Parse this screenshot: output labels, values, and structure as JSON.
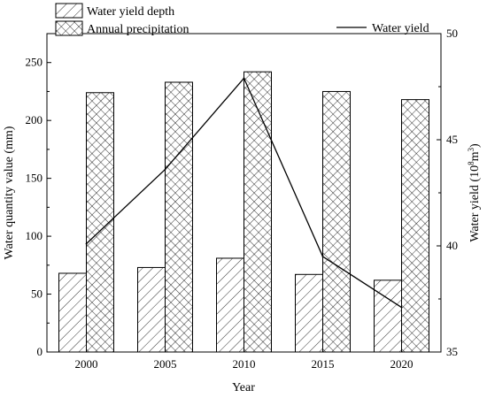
{
  "chart_data": {
    "type": "bar",
    "xlabel": "Year",
    "ylabel": "Water quantity value (mm)",
    "ylabel_right_prefix": "Water yield (10",
    "ylabel_right_exp1": "8",
    "ylabel_right_mid": "m",
    "ylabel_right_exp2": "3",
    "ylabel_right_suffix": ")",
    "categories": [
      "2000",
      "2005",
      "2010",
      "2015",
      "2020"
    ],
    "ylim": [
      0,
      275
    ],
    "yticks": [
      "0",
      "50",
      "100",
      "150",
      "200",
      "250"
    ],
    "y2lim": [
      35,
      50
    ],
    "y2ticks": [
      "35",
      "40",
      "45",
      "50"
    ],
    "series": [
      {
        "name": "Water yield depth",
        "kind": "bar",
        "pattern": "diagonal-hatch",
        "axis": "left",
        "values": [
          68,
          73,
          81,
          67,
          62
        ]
      },
      {
        "name": "Annual precipitation",
        "kind": "bar",
        "pattern": "cross-hatch",
        "axis": "left",
        "values": [
          224,
          233,
          242,
          225,
          218
        ]
      },
      {
        "name": "Water yield",
        "kind": "line",
        "axis": "right",
        "values": [
          40.1,
          43.6,
          47.9,
          39.5,
          37.1
        ]
      }
    ],
    "legend_position": "top"
  }
}
